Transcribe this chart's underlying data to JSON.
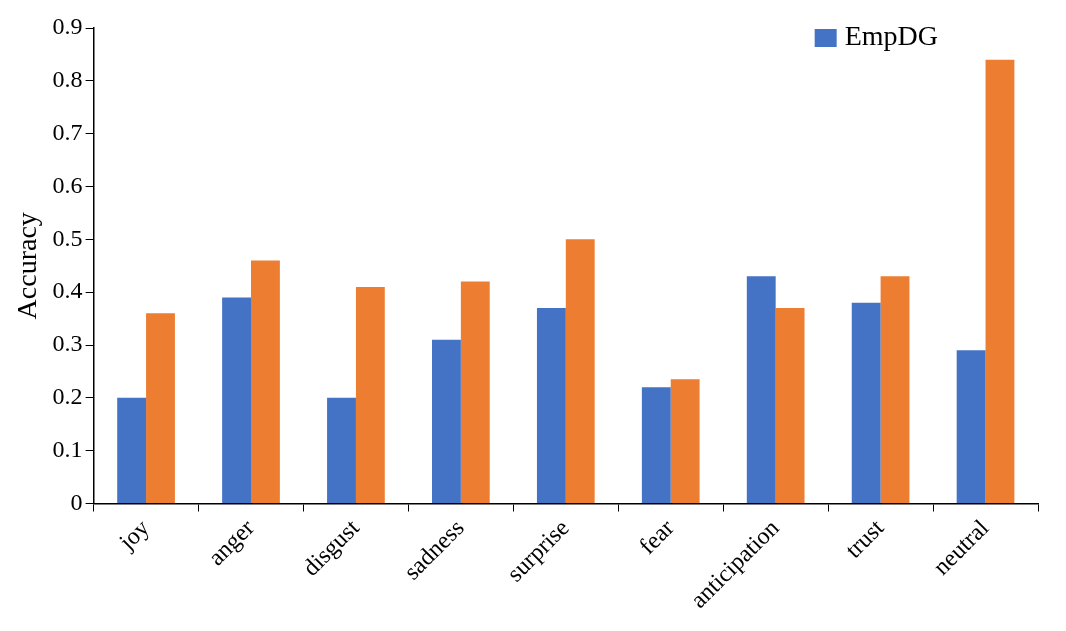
{
  "chart_data": {
    "type": "bar",
    "ylabel": "Accuracy",
    "categories": [
      "joy",
      "anger",
      "disgust",
      "sadness",
      "surprise",
      "fear",
      "anticipation",
      "trust",
      "neutral"
    ],
    "series": [
      {
        "name": "EmpDG",
        "color": "#4472c4",
        "values": [
          0.2,
          0.39,
          0.2,
          0.31,
          0.37,
          0.22,
          0.43,
          0.38,
          0.29
        ]
      },
      {
        "color": "#ed7d31",
        "values": [
          0.36,
          0.46,
          0.41,
          0.42,
          0.5,
          0.235,
          0.37,
          0.43,
          0.84
        ]
      }
    ],
    "ylim": [
      0,
      0.9
    ],
    "yticks": [
      0,
      0.1,
      0.2,
      0.3,
      0.4,
      0.5,
      0.6,
      0.7,
      0.8,
      0.9
    ],
    "grid": false,
    "legend": "top right"
  }
}
